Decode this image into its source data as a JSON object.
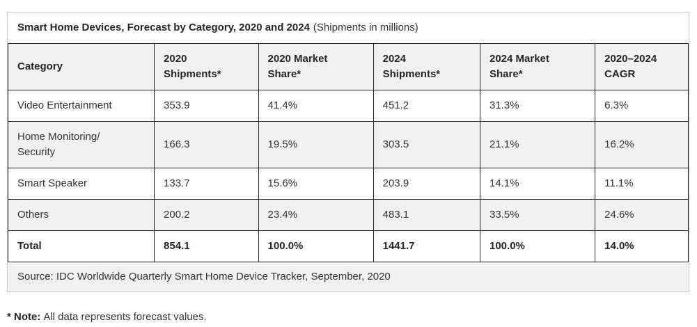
{
  "title": {
    "main": "Smart Home Devices, Forecast by Category, 2020 and 2024",
    "subtitle": "(Shipments in millions)"
  },
  "table": {
    "columns": [
      {
        "label": "Category"
      },
      {
        "label": "2020\nShipments*"
      },
      {
        "label": "2020 Market\nShare*"
      },
      {
        "label": "2024\nShipments*"
      },
      {
        "label": "2024 Market\nShare*"
      },
      {
        "label": "2020–2024\nCAGR"
      }
    ],
    "rows": [
      {
        "cells": [
          "Video Entertainment",
          "353.9",
          "41.4%",
          "451.2",
          "31.3%",
          "6.3%"
        ]
      },
      {
        "cells": [
          "Home Monitoring/\nSecurity",
          "166.3",
          "19.5%",
          "303.5",
          "21.1%",
          "16.2%"
        ]
      },
      {
        "cells": [
          "Smart Speaker",
          "133.7",
          "15.6%",
          "203.9",
          "14.1%",
          "11.1%"
        ]
      },
      {
        "cells": [
          "Others",
          "200.2",
          "23.4%",
          "483.1",
          "33.5%",
          "24.6%"
        ]
      },
      {
        "cells": [
          "Total",
          "854.1",
          "100.0%",
          "1441.7",
          "100.0%",
          "14.0%"
        ]
      }
    ]
  },
  "source": "Source: IDC Worldwide Quarterly Smart Home Device Tracker, September, 2020",
  "note": {
    "label": "* Note:",
    "text": "All data represents forecast values."
  },
  "colors": {
    "header_bg": "#f1f1f1",
    "alt_row_bg": "#f1f1f1",
    "grid_border": "#222222",
    "panel_border": "#cccccc",
    "text": "#333333"
  },
  "chart_data": {
    "type": "table",
    "title": "Smart Home Devices, Forecast by Category, 2020 and 2024 (Shipments in millions)",
    "columns": [
      "Category",
      "2020 Shipments*",
      "2020 Market Share*",
      "2024 Shipments*",
      "2024 Market Share*",
      "2020–2024 CAGR"
    ],
    "rows": [
      [
        "Video Entertainment",
        353.9,
        "41.4%",
        451.2,
        "31.3%",
        "6.3%"
      ],
      [
        "Home Monitoring/ Security",
        166.3,
        "19.5%",
        303.5,
        "21.1%",
        "16.2%"
      ],
      [
        "Smart Speaker",
        133.7,
        "15.6%",
        203.9,
        "14.1%",
        "11.1%"
      ],
      [
        "Others",
        200.2,
        "23.4%",
        483.1,
        "33.5%",
        "24.6%"
      ],
      [
        "Total",
        854.1,
        "100.0%",
        1441.7,
        "100.0%",
        "14.0%"
      ]
    ],
    "source": "Source: IDC Worldwide Quarterly Smart Home Device Tracker, September, 2020",
    "note": "* Note: All data represents forecast values."
  }
}
